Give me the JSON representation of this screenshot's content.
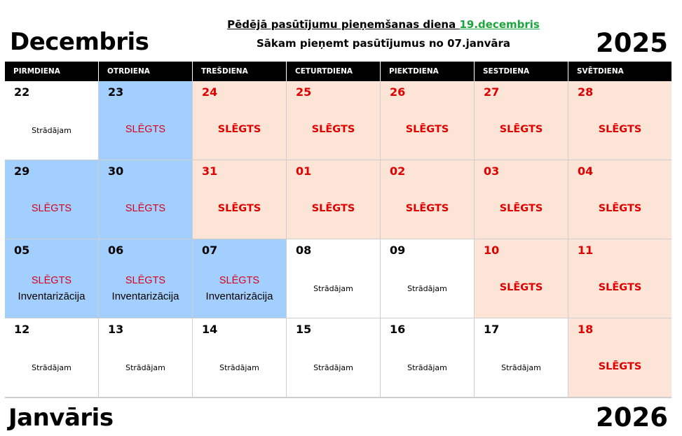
{
  "month_top": "Decembris",
  "year_top": "2025",
  "month_bottom": "Janvāris",
  "year_bottom": "2026",
  "notice": {
    "line1_label": "Pēdējā pasūtījumu pieņemšanas diena ",
    "line1_date": "19.decembris",
    "line2": "Sākam pieņemt pasūtījumus no 07.janvāra"
  },
  "colors": {
    "open": "#ffffff",
    "closed_blue": "#a2cffe",
    "closed_peach": "#fce4d6",
    "date_green": "#1ca53c",
    "red": "#e00000"
  },
  "weekdays": [
    "PIRMDIENA",
    "OTRDIENA",
    "TREŠDIENA",
    "CETURTDIENA",
    "PIEKTDIENA",
    "SESTDIENA",
    "SVĒTDIENA"
  ],
  "weeks": [
    [
      {
        "day": "22",
        "status": "Strādājam",
        "type": "white",
        "red": false
      },
      {
        "day": "23",
        "status": "SLĒGTS",
        "type": "blue",
        "red": false
      },
      {
        "day": "24",
        "status": "SLĒGTS",
        "type": "peach",
        "red": true
      },
      {
        "day": "25",
        "status": "SLĒGTS",
        "type": "peach",
        "red": true
      },
      {
        "day": "26",
        "status": "SLĒGTS",
        "type": "peach",
        "red": true
      },
      {
        "day": "27",
        "status": "SLĒGTS",
        "type": "peach",
        "red": true
      },
      {
        "day": "28",
        "status": "SLĒGTS",
        "type": "peach",
        "red": true
      }
    ],
    [
      {
        "day": "29",
        "status": "SLĒGTS",
        "type": "blue",
        "red": false
      },
      {
        "day": "30",
        "status": "SLĒGTS",
        "type": "blue",
        "red": false
      },
      {
        "day": "31",
        "status": "SLĒGTS",
        "type": "peach",
        "red": true
      },
      {
        "day": "01",
        "status": "SLĒGTS",
        "type": "peach",
        "red": true
      },
      {
        "day": "02",
        "status": "SLĒGTS",
        "type": "peach",
        "red": true
      },
      {
        "day": "03",
        "status": "SLĒGTS",
        "type": "peach",
        "red": true
      },
      {
        "day": "04",
        "status": "SLĒGTS",
        "type": "peach",
        "red": true
      }
    ],
    [
      {
        "day": "05",
        "status": "SLĒGTS",
        "sub": "Inventarizācija",
        "type": "blue",
        "red": false
      },
      {
        "day": "06",
        "status": "SLĒGTS",
        "sub": "Inventarizācija",
        "type": "blue",
        "red": false
      },
      {
        "day": "07",
        "status": "SLĒGTS",
        "sub": "Inventarizācija",
        "type": "blue",
        "red": false
      },
      {
        "day": "08",
        "status": "Strādājam",
        "type": "white",
        "red": false
      },
      {
        "day": "09",
        "status": "Strādājam",
        "type": "white",
        "red": false
      },
      {
        "day": "10",
        "status": "SLĒGTS",
        "type": "peach",
        "red": true
      },
      {
        "day": "11",
        "status": "SLĒGTS",
        "type": "peach",
        "red": true
      }
    ],
    [
      {
        "day": "12",
        "status": "Strādājam",
        "type": "white",
        "red": false
      },
      {
        "day": "13",
        "status": "Strādājam",
        "type": "white",
        "red": false
      },
      {
        "day": "14",
        "status": "Strādājam",
        "type": "white",
        "red": false
      },
      {
        "day": "15",
        "status": "Strādājam",
        "type": "white",
        "red": false
      },
      {
        "day": "16",
        "status": "Strādājam",
        "type": "white",
        "red": false
      },
      {
        "day": "17",
        "status": "Strādājam",
        "type": "white",
        "red": false
      },
      {
        "day": "18",
        "status": "SLĒGTS",
        "type": "peach",
        "red": true
      }
    ]
  ]
}
